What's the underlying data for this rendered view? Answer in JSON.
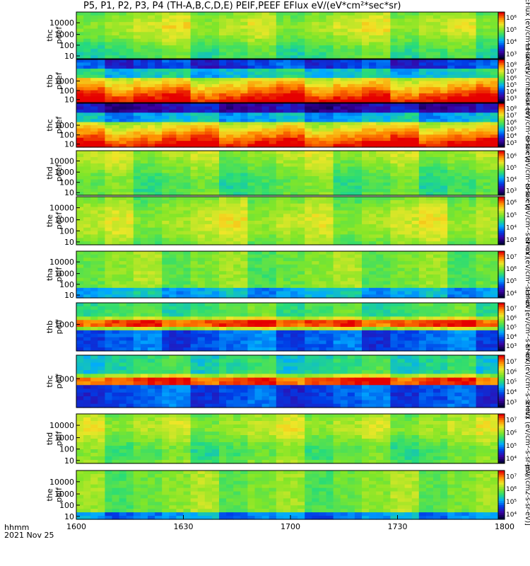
{
  "title": "P5, P1, P2, P3, P4 (TH-A,B,C,D,E) PEIF,PEEF EFlux eV/(eV*cm²*sec*sr)",
  "footer": {
    "time_label": "hhmm",
    "date_label": "2021 Nov 25"
  },
  "chart_data": {
    "type": "heatmap",
    "x_axis": {
      "ticks": [
        "1600",
        "1630",
        "1700",
        "1730",
        "1800"
      ],
      "range": [
        "16:00",
        "18:00"
      ]
    },
    "colormap": "rainbow (blue-green-yellow-red), log scale",
    "panels": [
      {
        "probe": "thc",
        "product": "peef",
        "y_ticks": [
          "10000",
          "1000",
          "100",
          "10"
        ],
        "cbar_ticks": [
          "10⁶",
          "10⁵",
          "10⁴",
          "10³"
        ],
        "cbar_label": "EFlux (eV/cm²-s-sr-eV)"
      },
      {
        "probe": "thb",
        "product": "peef",
        "y_ticks": [
          "1000",
          "100",
          "10"
        ],
        "cbar_ticks": [
          "10⁸",
          "10⁷",
          "10⁶",
          "10⁵",
          "10⁴",
          "10³"
        ],
        "cbar_label": "EFlux (eV/cm²-s-sr-eV)"
      },
      {
        "probe": "thc",
        "product": "peef",
        "y_ticks": [
          "1000",
          "100",
          "10"
        ],
        "cbar_ticks": [
          "10⁸",
          "10⁷",
          "10⁶",
          "10⁵",
          "10⁴",
          "10³"
        ],
        "cbar_label": "EFlux (eV/cm²-s-sr-eV)"
      },
      {
        "probe": "thd",
        "product": "peef",
        "y_ticks": [
          "10000",
          "1000",
          "100",
          "10"
        ],
        "cbar_ticks": [
          "10⁶",
          "10⁵",
          "10⁴",
          "10³"
        ],
        "cbar_label": "EFlux (eV/cm²-s-sr-eV)"
      },
      {
        "probe": "the",
        "product": "peef",
        "y_ticks": [
          "10000",
          "1000",
          "100",
          "10"
        ],
        "cbar_ticks": [
          "10⁶",
          "10⁵",
          "10⁴",
          "10³"
        ],
        "cbar_label": "EFlux (eV/cm²-s-sr-eV)"
      },
      {
        "probe": "tha",
        "product": "peif",
        "y_ticks": [
          "10000",
          "1000",
          "100",
          "10"
        ],
        "cbar_ticks": [
          "10⁷",
          "10⁶",
          "10⁵",
          "10⁴"
        ],
        "cbar_label": "EFlux (eV/cm²-s-sr-eV)"
      },
      {
        "probe": "thb",
        "product": "peif",
        "y_ticks": [
          "1000"
        ],
        "cbar_ticks": [
          "10⁷",
          "10⁶",
          "10⁵",
          "10⁴",
          "10³"
        ],
        "cbar_label": "EFlux (eV/cm²-s-sr-eV)"
      },
      {
        "probe": "thc",
        "product": "peif",
        "y_ticks": [
          "1000"
        ],
        "cbar_ticks": [
          "10⁷",
          "10⁶",
          "10⁵",
          "10⁴",
          "10³"
        ],
        "cbar_label": "EFlux (eV/cm²-s-sr-eV)"
      },
      {
        "probe": "thd",
        "product": "peif",
        "y_ticks": [
          "10000",
          "1000",
          "100",
          "10"
        ],
        "cbar_ticks": [
          "10⁷",
          "10⁶",
          "10⁵",
          "10⁴"
        ],
        "cbar_label": "EFlux (eV/cm²-s-sr-eV)"
      },
      {
        "probe": "the",
        "product": "peif",
        "y_ticks": [
          "10000",
          "1000",
          "100",
          "10"
        ],
        "cbar_ticks": [
          "10⁷",
          "10⁶",
          "10⁵",
          "10⁴"
        ],
        "cbar_label": "[eV/(cm2-s-sr-eV)]"
      }
    ]
  }
}
